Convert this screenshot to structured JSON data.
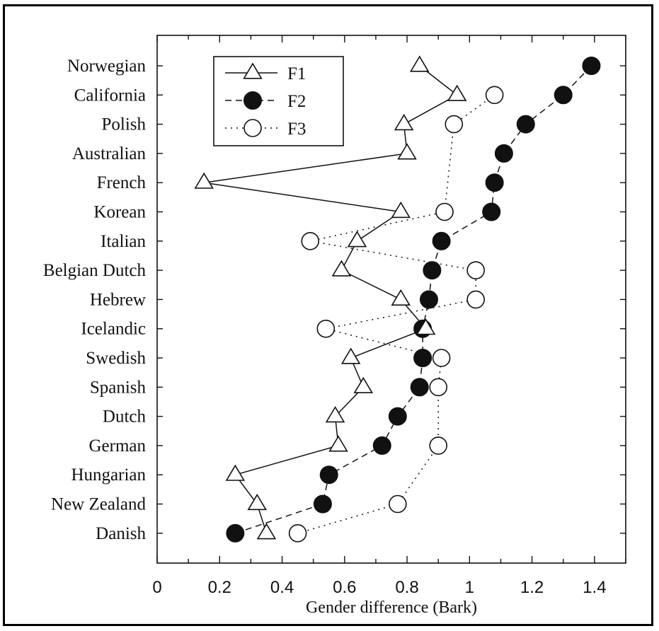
{
  "chart_data": {
    "type": "line",
    "xlabel": "Gender difference (Bark)",
    "ylabel": "",
    "title": "",
    "xlim": [
      0,
      1.5
    ],
    "xticks": [
      0,
      0.2,
      0.4,
      0.6,
      0.8,
      1,
      1.2,
      1.4
    ],
    "xtick_labels": [
      "0",
      "0.2",
      "0.4",
      "0.6",
      "0.8",
      "1",
      "1.2",
      "1.4"
    ],
    "grid": false,
    "legend_position": "top-left",
    "categories": [
      "Norwegian",
      "California",
      "Polish",
      "Australian",
      "French",
      "Korean",
      "Italian",
      "Belgian Dutch",
      "Hebrew",
      "Icelandic",
      "Swedish",
      "Spanish",
      "Dutch",
      "German",
      "Hungarian",
      "New Zealand",
      "Danish"
    ],
    "series": [
      {
        "name": "F1",
        "line": "solid",
        "marker": "triangle-open",
        "values": [
          0.84,
          0.96,
          0.79,
          0.8,
          0.15,
          0.78,
          0.64,
          0.59,
          0.78,
          0.86,
          0.62,
          0.66,
          0.57,
          0.58,
          0.25,
          0.32,
          0.35
        ]
      },
      {
        "name": "F2",
        "line": "dashed",
        "marker": "circle-filled",
        "values": [
          1.39,
          1.3,
          1.18,
          1.11,
          1.08,
          1.07,
          0.91,
          0.88,
          0.87,
          0.85,
          0.85,
          0.84,
          0.77,
          0.72,
          0.55,
          0.53,
          0.25
        ]
      },
      {
        "name": "F3",
        "line": "dotted",
        "marker": "circle-open",
        "values": [
          null,
          1.08,
          0.95,
          null,
          null,
          0.92,
          0.49,
          1.02,
          1.02,
          0.54,
          0.91,
          0.9,
          null,
          0.9,
          null,
          0.77,
          0.45
        ]
      }
    ]
  },
  "colors": {
    "ink": "#111111",
    "background": "#ffffff"
  }
}
